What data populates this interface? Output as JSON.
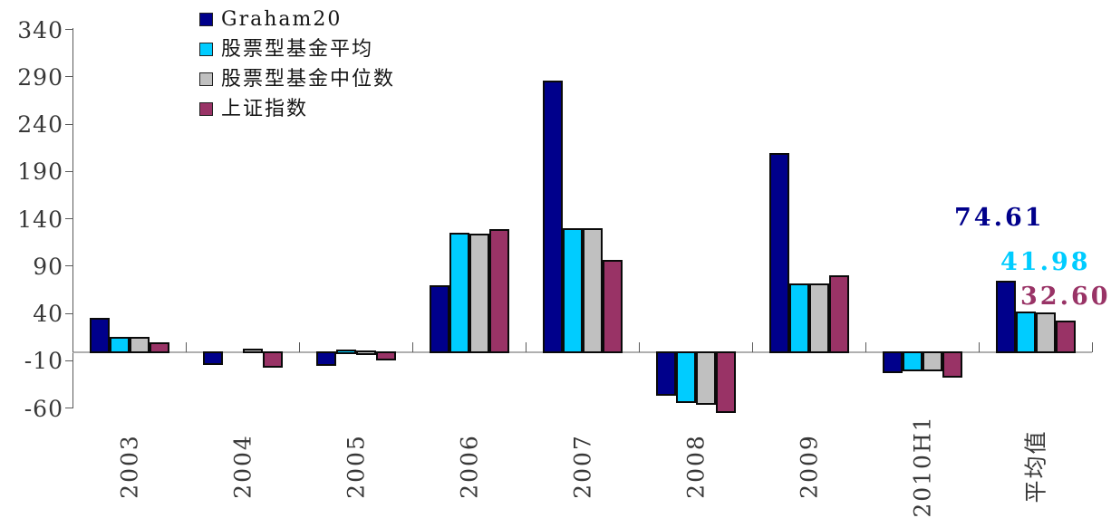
{
  "chart_data": {
    "type": "bar",
    "title": "",
    "xlabel": "",
    "ylabel": "",
    "categories": [
      "2003",
      "2004",
      "2005",
      "2006",
      "2007",
      "2008",
      "2009",
      "2010H1",
      "平均值"
    ],
    "series": [
      {
        "name": "Graham20",
        "color": "#00008B",
        "values": [
          35,
          -14,
          -15,
          70,
          286,
          -47,
          210,
          -23,
          74.61
        ]
      },
      {
        "name": "股票型基金平均",
        "color": "#00CCFF",
        "values": [
          15,
          0,
          2,
          125,
          130,
          -55,
          72,
          -21,
          41.98
        ]
      },
      {
        "name": "股票型基金中位数",
        "color": "#C0C0C0",
        "values": [
          15,
          3,
          1,
          124,
          130,
          -56,
          72,
          -21,
          41.5
        ]
      },
      {
        "name": "上证指数",
        "color": "#993366",
        "values": [
          10,
          -17,
          -10,
          129,
          97,
          -65,
          80,
          -28,
          32.6
        ]
      }
    ],
    "y_axis": {
      "min": -60,
      "max": 340,
      "step": 50,
      "ticks": [
        340,
        290,
        240,
        190,
        140,
        90,
        40,
        -10,
        -60
      ]
    },
    "legend_position": "top-left",
    "grid": false,
    "annotations": [
      {
        "text": "74.61",
        "color": "#00008B",
        "series": "Graham20"
      },
      {
        "text": "41.98",
        "color": "#00CCFF",
        "series": "股票型基金平均"
      },
      {
        "text": "32.60",
        "color": "#993366",
        "series": "上证指数"
      }
    ]
  }
}
